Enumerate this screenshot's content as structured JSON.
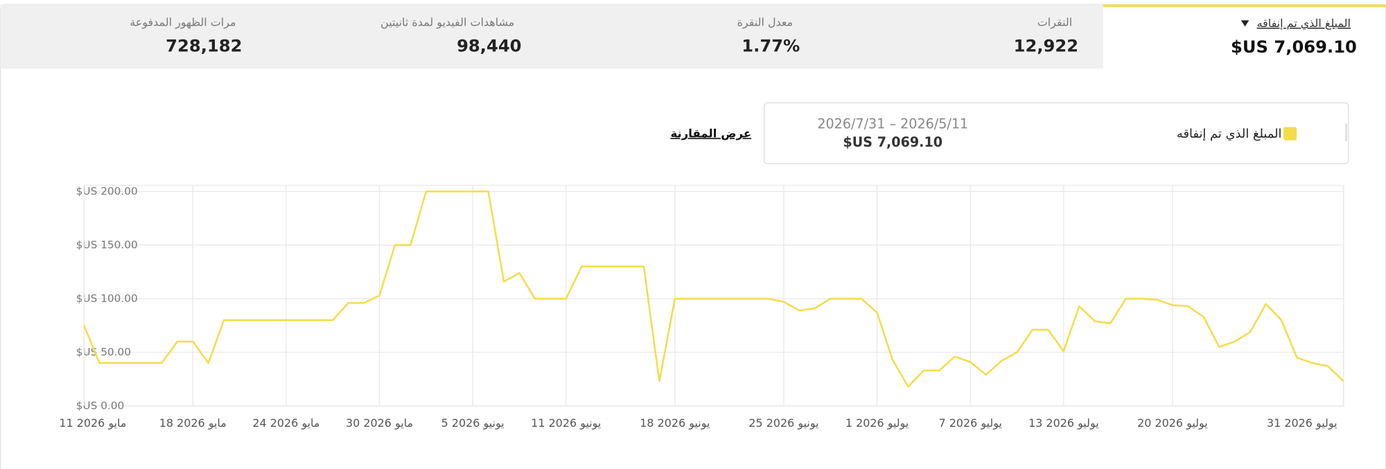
{
  "tabs": [
    {
      "label": "المبلغ الذي تم إنفاقه",
      "value": "$US 7,069.10"
    },
    {
      "label": "النقرات",
      "value": "12,922"
    },
    {
      "label": "معدل النقرة",
      "value": "1.77%"
    },
    {
      "label": "مشاهدات الفيديو لمدة ثانيتين",
      "value": "98,440"
    },
    {
      "label": "مرات الظهور المدفوعة",
      "value": "728,182"
    }
  ],
  "legend": {
    "date_range": "2026/7/31 – 2026/5/11",
    "total": "$US 7,069.10"
  },
  "compare_link": "عرض المقارنة",
  "chart_data": {
    "type": "line",
    "categories": [
      "11 مايو 2026",
      null,
      null,
      null,
      null,
      null,
      null,
      "18 مايو 2026",
      null,
      null,
      null,
      null,
      null,
      "24 مايو 2026",
      null,
      null,
      null,
      null,
      null,
      "30 مايو 2026",
      null,
      null,
      null,
      null,
      null,
      "5 يونيو 2026",
      null,
      null,
      null,
      null,
      null,
      "11 يونيو 2026",
      null,
      null,
      null,
      null,
      null,
      null,
      "18 يونيو 2026",
      null,
      null,
      null,
      null,
      null,
      null,
      "25 يونيو 2026",
      null,
      null,
      null,
      null,
      null,
      "1 يوليو 2026",
      null,
      null,
      null,
      null,
      null,
      "7 يوليو 2026",
      null,
      null,
      null,
      null,
      null,
      "13 يوليو 2026",
      null,
      null,
      null,
      null,
      null,
      null,
      "20 يوليو 2026",
      null,
      null,
      null,
      null,
      null,
      null,
      null,
      null,
      null,
      null,
      "31 يوليو 2026"
    ],
    "series": [
      {
        "name": "المبلغ الذي تم إنفاقه",
        "color": "#f5dc4b",
        "values": [
          75,
          40,
          40,
          40,
          40,
          40,
          60,
          60,
          40,
          80,
          80,
          80,
          80,
          80,
          80,
          80,
          80,
          96,
          96,
          103,
          150,
          150,
          200,
          200,
          200,
          200,
          200,
          116,
          124,
          100,
          100,
          100,
          130,
          130,
          130,
          130,
          130,
          23,
          100,
          100,
          100,
          100,
          100,
          100,
          100,
          97,
          89,
          91,
          100,
          100,
          100,
          87,
          43,
          18,
          33,
          33,
          46,
          41,
          29,
          42,
          50,
          71,
          71,
          51,
          93,
          79,
          77,
          100,
          100,
          99,
          94,
          93,
          83,
          55,
          60,
          69,
          95,
          80,
          45,
          40,
          37,
          23
        ]
      }
    ],
    "ylim": [
      0,
      200
    ],
    "yticks": [
      {
        "value": 0,
        "label": "$US 0.00"
      },
      {
        "value": 50,
        "label": "$US 50.00"
      },
      {
        "value": 100,
        "label": "$US 100.00"
      },
      {
        "value": 150,
        "label": "$US 150.00"
      },
      {
        "value": 200,
        "label": "$US 200.00"
      }
    ],
    "grid": true
  }
}
